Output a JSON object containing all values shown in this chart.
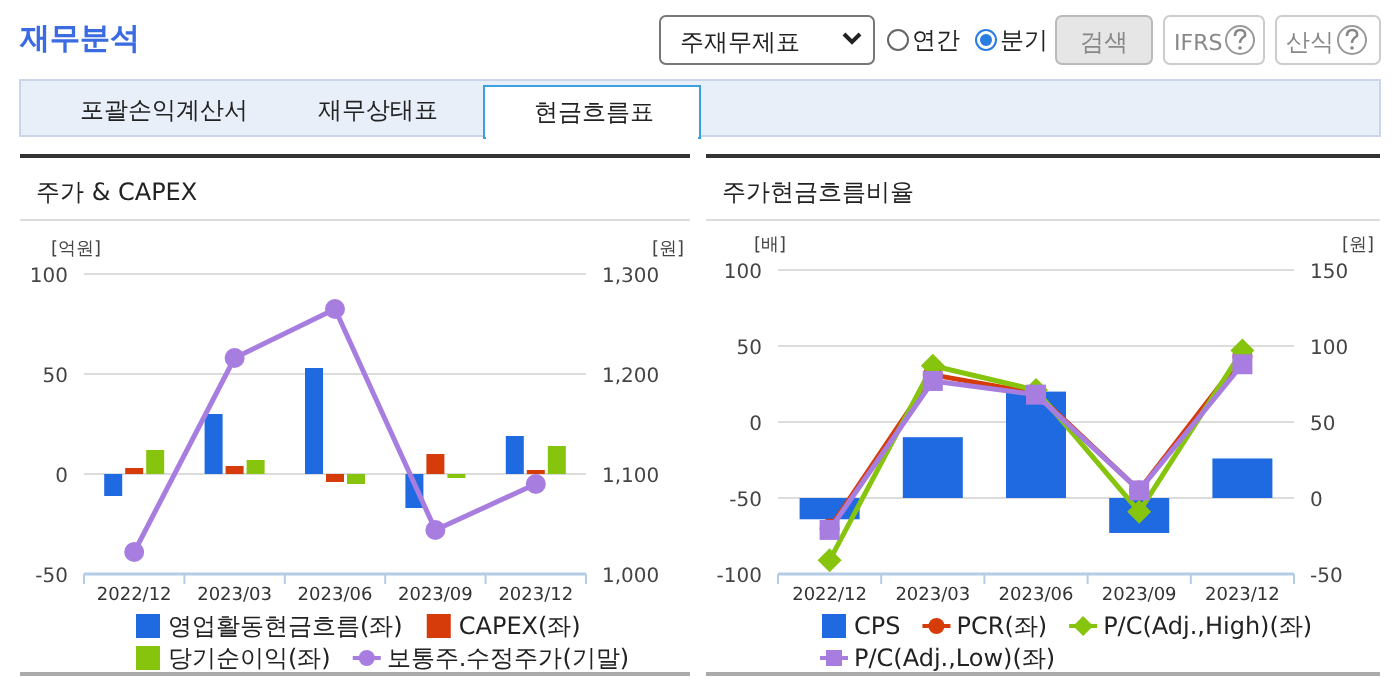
{
  "chart_data": [
    {
      "type": "other",
      "title": "재무분석",
      "annotations": [
        "주재무제표",
        "연간",
        "분기",
        "검색",
        "IFRS",
        "산식",
        "포괄손익계산서",
        "재무상태표",
        "현금흐름표"
      ]
    },
    {
      "type": "bar",
      "title": "주가 & CAPEX",
      "ylabel": "[억원]",
      "y2label": "[원]",
      "categories": [
        "2022/12",
        "2023/03",
        "2023/06",
        "2023/09",
        "2023/12"
      ],
      "ylim": [
        -50,
        100
      ],
      "yticks": [
        -50,
        0,
        50,
        100
      ],
      "y2lim": [
        1000,
        1300
      ],
      "y2ticks": [
        {
          "value": 1000,
          "label": "1,000"
        },
        {
          "value": 1100,
          "label": "1,100"
        },
        {
          "value": 1200,
          "label": "1,200"
        },
        {
          "value": 1300,
          "label": "1,300"
        }
      ],
      "grid": "y",
      "legend": "bottom",
      "series": [
        {
          "name": "영업활동현금흐름(좌)",
          "color": "#1f6ae0",
          "values": [
            -11,
            30,
            53,
            -17,
            19
          ]
        },
        {
          "name": "CAPEX(좌)",
          "color": "#d63b0a",
          "values": [
            3,
            4,
            -4,
            10,
            2
          ]
        },
        {
          "name": "당기순이익(좌)",
          "color": "#86c40d",
          "values": [
            12,
            7,
            -5,
            -2,
            14
          ]
        },
        {
          "name": "보통주.수정주가(기말)",
          "type": "line",
          "axis": "y2",
          "marker": "circle",
          "color": "#a77ee0",
          "values": [
            1022,
            1216,
            1265,
            1044,
            1090
          ]
        }
      ]
    },
    {
      "type": "bar",
      "title": "주가현금흐름비율",
      "ylabel": "[배]",
      "y2label": "[원]",
      "categories": [
        "2022/12",
        "2023/03",
        "2023/06",
        "2023/09",
        "2023/12"
      ],
      "ylim": [
        -100,
        100
      ],
      "yticks": [
        -100,
        -50,
        0,
        50,
        100
      ],
      "y2lim": [
        -50,
        150
      ],
      "y2ticks": [
        -50,
        0,
        50,
        100,
        150
      ],
      "grid": "y",
      "legend": "bottom",
      "series": [
        {
          "name": "CPS",
          "axis": "y2",
          "color": "#1f6ae0",
          "values": [
            -14,
            40,
            70,
            -23,
            26
          ]
        },
        {
          "name": "PCR(좌)",
          "type": "line",
          "marker": "circle",
          "color": "#d63b0a",
          "values": [
            -70,
            31,
            19,
            -45,
            43
          ]
        },
        {
          "name": "P/C(Adj.,High)(좌)",
          "type": "line",
          "marker": "diamond",
          "color": "#86c40d",
          "values": [
            -91,
            37,
            21,
            -59,
            47
          ]
        },
        {
          "name": "P/C(Adj.,Low)(좌)",
          "type": "line",
          "marker": "square",
          "color": "#a77ee0",
          "values": [
            -71,
            27,
            18,
            -45,
            38
          ]
        }
      ]
    }
  ]
}
